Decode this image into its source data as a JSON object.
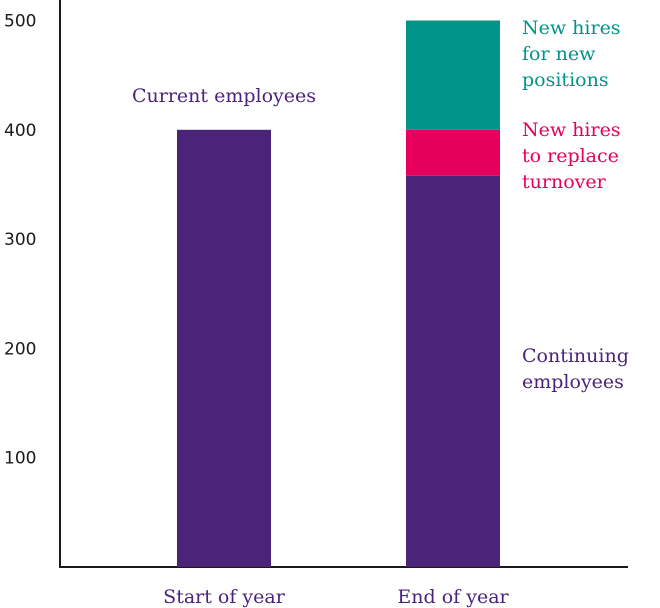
{
  "chart_data": {
    "type": "bar",
    "stacked": true,
    "categories": [
      "Start of year",
      "End of year"
    ],
    "series": [
      {
        "name": "Current employees",
        "values": [
          400,
          0
        ],
        "color": "#4b2378"
      },
      {
        "name": "Continuing employees",
        "values": [
          0,
          358
        ],
        "color": "#4b2378"
      },
      {
        "name": "New hires to replace turnover",
        "values": [
          0,
          42
        ],
        "color": "#e6005c"
      },
      {
        "name": "New hires for new positions",
        "values": [
          0,
          100
        ],
        "color": "#00938a"
      }
    ],
    "ylim": [
      0,
      510
    ],
    "yticks": [
      100,
      200,
      300,
      400,
      500
    ],
    "grid": false,
    "legend": "inline-labels",
    "annotations": [
      {
        "id": "current",
        "lines": [
          "Current employees"
        ],
        "color": "#4b2378"
      },
      {
        "id": "newpos",
        "lines": [
          "New hires",
          "for new",
          "positions"
        ],
        "color": "#00938a"
      },
      {
        "id": "turnover",
        "lines": [
          "New hires",
          "to replace",
          "turnover"
        ],
        "color": "#e6005c"
      },
      {
        "id": "continuing",
        "lines": [
          "Continuing",
          "employees"
        ],
        "color": "#4b2378"
      }
    ],
    "title": "",
    "xlabel": "",
    "ylabel": ""
  }
}
